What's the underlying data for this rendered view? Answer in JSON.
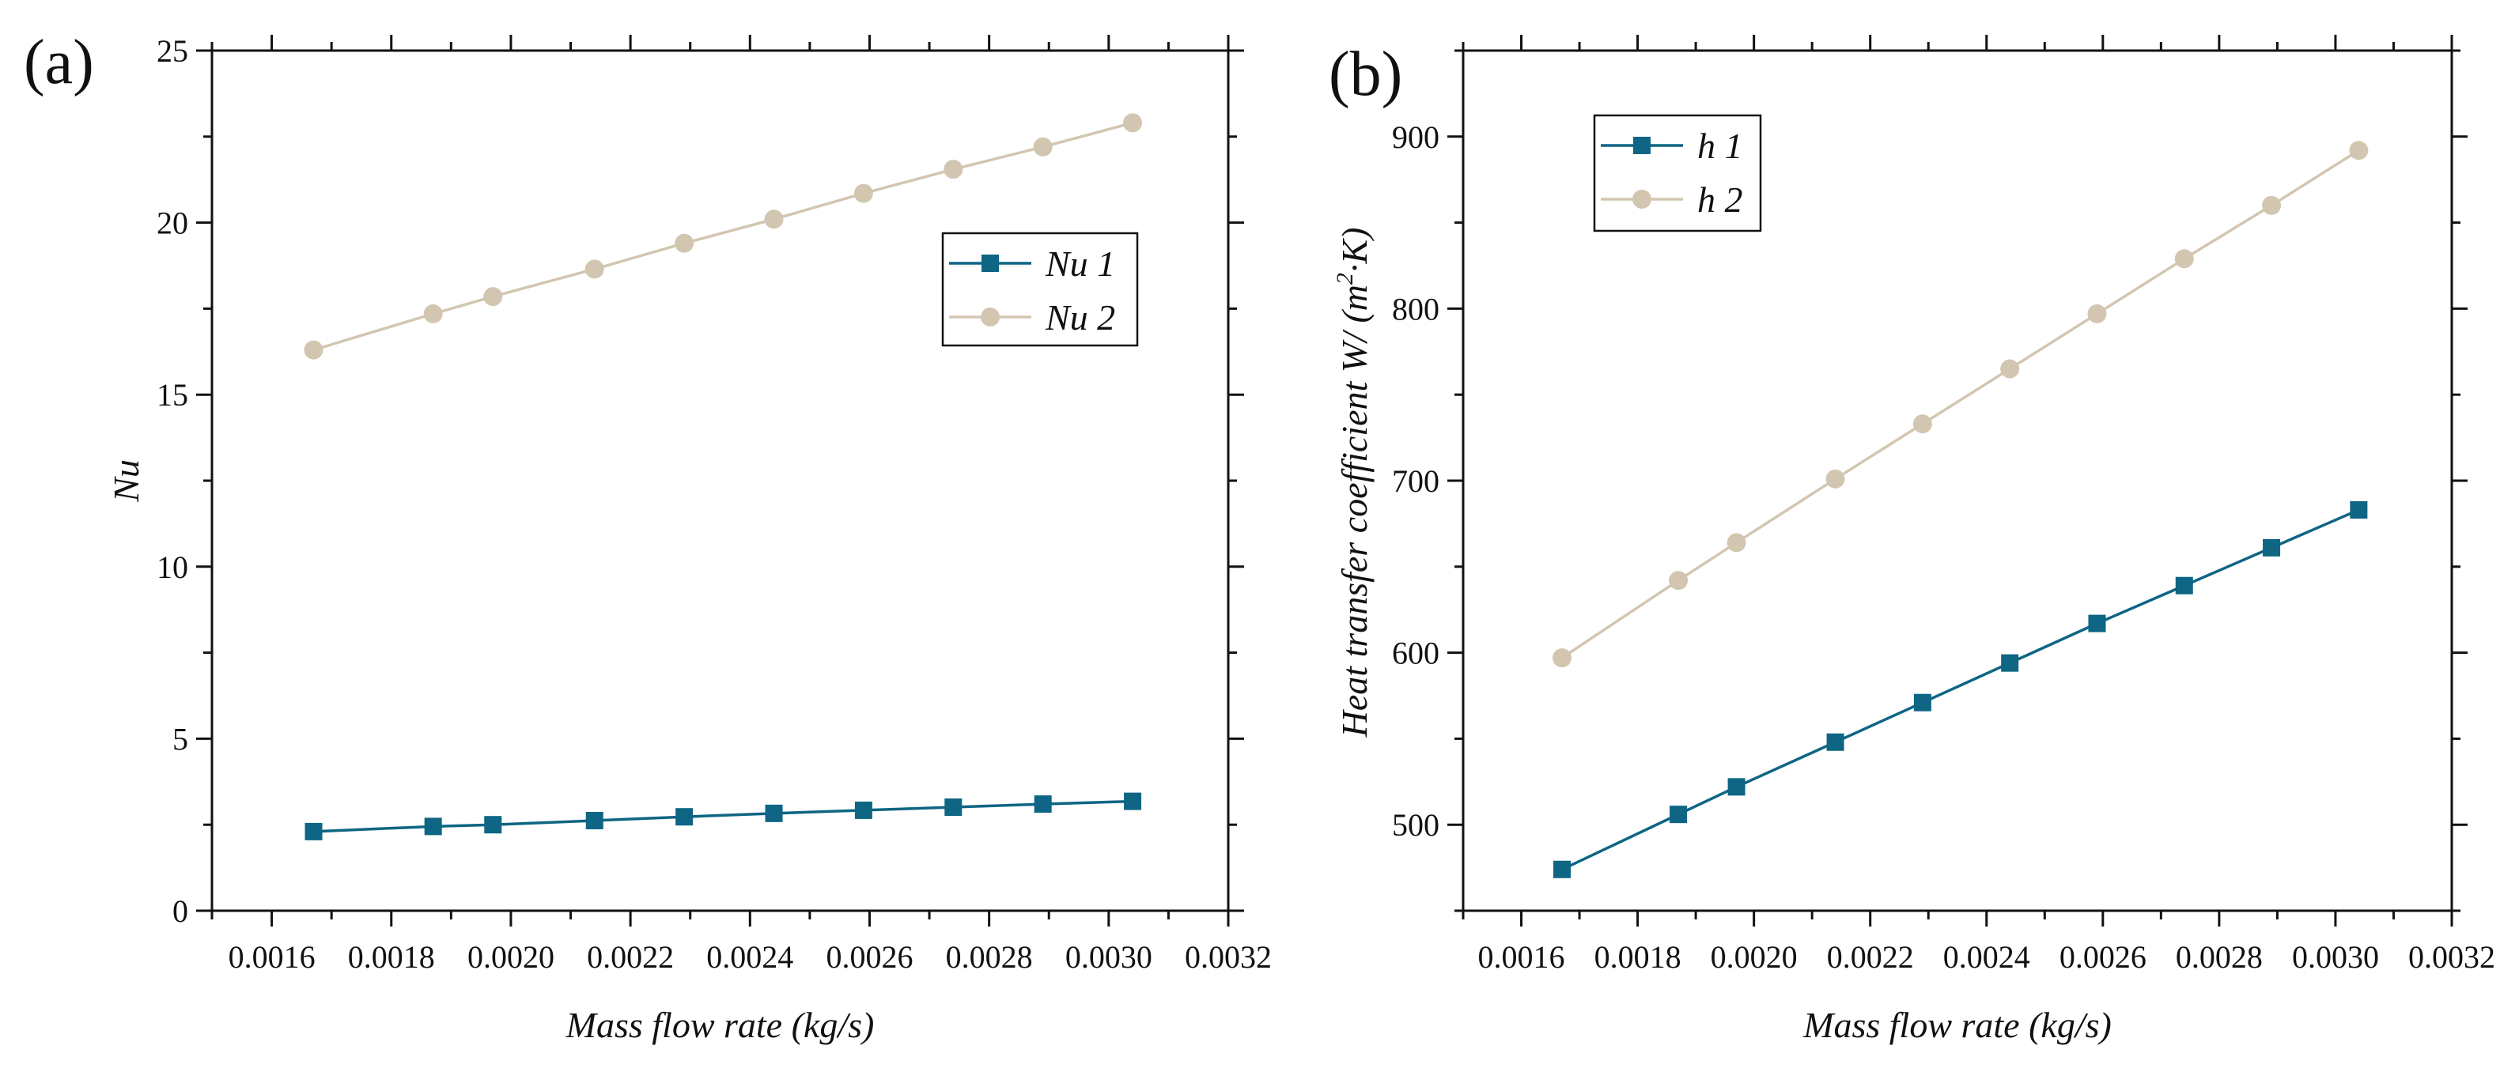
{
  "colors": {
    "series1": "#0E6584",
    "series2": "#D3C6B1",
    "axis": "#111111"
  },
  "chart_data": [
    {
      "panel_label": "(a)",
      "type": "line",
      "xlabel": "Mass flow rate (kg/s)",
      "ylabel": "Nu",
      "xlim": [
        0.0015,
        0.0032
      ],
      "ylim": [
        0,
        25
      ],
      "xticks": [
        0.0016,
        0.0018,
        0.002,
        0.0022,
        0.0024,
        0.0026,
        0.0028,
        0.003,
        0.0032
      ],
      "xtick_labels": [
        "0.0016",
        "0.0018",
        "0.0020",
        "0.0022",
        "0.0024",
        "0.0026",
        "0.0028",
        "0.0030",
        "0.0032"
      ],
      "yticks": [
        0,
        5,
        10,
        15,
        20,
        25
      ],
      "ytick_labels": [
        "0",
        "5",
        "10",
        "15",
        "20",
        "25"
      ],
      "legend_position": "right, upper-middle",
      "x": [
        0.00167,
        0.00187,
        0.00197,
        0.00214,
        0.00229,
        0.00244,
        0.00259,
        0.00274,
        0.00289,
        0.00304
      ],
      "series": [
        {
          "name": "Nu 1",
          "marker": "square",
          "color": "#0E6584",
          "values": [
            2.3,
            2.45,
            2.5,
            2.62,
            2.73,
            2.83,
            2.92,
            3.01,
            3.1,
            3.18
          ]
        },
        {
          "name": "Nu 2",
          "marker": "circle",
          "color": "#D3C6B1",
          "values": [
            16.3,
            17.35,
            17.85,
            18.65,
            19.4,
            20.1,
            20.85,
            21.55,
            22.2,
            22.9
          ]
        }
      ]
    },
    {
      "panel_label": "(b)",
      "type": "line",
      "xlabel": "Mass flow rate (kg/s)",
      "ylabel_main": "Heat transfer coefficient W/ (m",
      "ylabel_sup": "2",
      "ylabel_end": "·K)",
      "xlim": [
        0.0015,
        0.0032
      ],
      "ylim": [
        450,
        950
      ],
      "xticks": [
        0.0016,
        0.0018,
        0.002,
        0.0022,
        0.0024,
        0.0026,
        0.0028,
        0.003,
        0.0032
      ],
      "xtick_labels": [
        "0.0016",
        "0.0018",
        "0.0020",
        "0.0022",
        "0.0024",
        "0.0026",
        "0.0028",
        "0.0030",
        "0.0032"
      ],
      "yticks": [
        500,
        600,
        700,
        800,
        900
      ],
      "ytick_labels": [
        "500",
        "600",
        "700",
        "800",
        "900"
      ],
      "legend_position": "top-left",
      "x": [
        0.00167,
        0.00187,
        0.00197,
        0.00214,
        0.00229,
        0.00244,
        0.00259,
        0.00274,
        0.00289,
        0.00304
      ],
      "series": [
        {
          "name": "h 1",
          "marker": "square",
          "color": "#0E6584",
          "values": [
            474,
            506,
            522,
            548,
            571,
            594,
            617,
            639,
            661,
            683
          ]
        },
        {
          "name": "h 2",
          "marker": "circle",
          "color": "#D3C6B1",
          "values": [
            597,
            642,
            664,
            701,
            733,
            765,
            797,
            829,
            860,
            892
          ]
        }
      ]
    }
  ]
}
